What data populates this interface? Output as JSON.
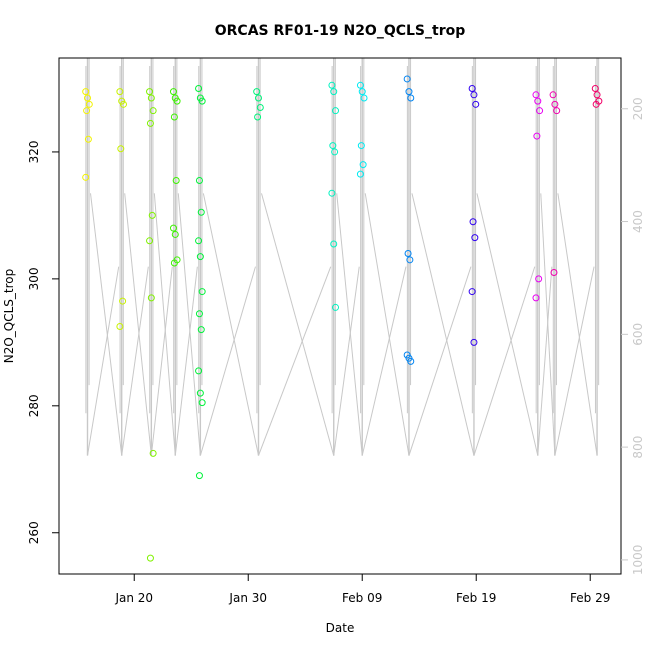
{
  "chart_data": {
    "type": "scatter",
    "title": "ORCAS RF01-19 N2O_QCLS_trop",
    "xlabel": "Date",
    "ylabel": "N2O_QCLS_trop",
    "x_ticks": [
      "Jan 20",
      "Jan 30",
      "Feb 09",
      "Feb 19",
      "Feb 29"
    ],
    "x_tick_days": [
      20,
      30,
      40,
      50,
      60
    ],
    "xlim_days": [
      13.4,
      62.7
    ],
    "y_ticks": [
      260,
      280,
      300,
      320
    ],
    "ylim": [
      253.5,
      334.8
    ],
    "y2_ticks": [
      200,
      400,
      600,
      800,
      1000
    ],
    "y2lim": [
      1025,
      110
    ],
    "marker": "open-circle",
    "altitude_line_color": "#c8c8c8",
    "flights": [
      {
        "day": 15.9,
        "color": "#f2f200",
        "values": [
          329.5,
          328.5,
          327.5,
          326.5,
          322,
          316
        ]
      },
      {
        "day": 18.9,
        "color": "#c8f200",
        "values": [
          329.5,
          328,
          327.5,
          320.5,
          296.5,
          292.5
        ]
      },
      {
        "day": 21.5,
        "color": "#80f200",
        "values": [
          329.5,
          328.5,
          326.5,
          324.5,
          310,
          306,
          297,
          272.5,
          256
        ]
      },
      {
        "day": 23.6,
        "color": "#3cf200",
        "values": [
          329.5,
          328.5,
          328,
          325.5,
          315.5,
          308,
          307,
          303,
          302.5
        ]
      },
      {
        "day": 25.8,
        "color": "#00f23a",
        "values": [
          330,
          328.5,
          328,
          315.5,
          310.5,
          306,
          303.5,
          298,
          294.5,
          292,
          285.5,
          282,
          280.5,
          269
        ]
      },
      {
        "day": 30.9,
        "color": "#00f27a",
        "values": [
          329.5,
          328.5,
          327,
          325.5
        ]
      },
      {
        "day": 37.5,
        "color": "#00f2c0",
        "values": [
          330.5,
          329.5,
          326.5,
          321,
          320,
          313.5,
          305.5,
          295.5
        ]
      },
      {
        "day": 40.0,
        "color": "#00eaf2",
        "values": [
          330.5,
          329.5,
          328.5,
          321,
          318,
          316.5
        ]
      },
      {
        "day": 44.1,
        "color": "#0084f2",
        "values": [
          331.5,
          329.5,
          328.5,
          304,
          303,
          288,
          287.5,
          287
        ]
      },
      {
        "day": 49.8,
        "color": "#3000f2",
        "values": [
          330,
          329,
          327.5,
          309,
          306.5,
          298,
          290
        ]
      },
      {
        "day": 55.4,
        "color": "#e800f2",
        "values": [
          329,
          328,
          326.5,
          322.5,
          300,
          297
        ]
      },
      {
        "day": 56.9,
        "color": "#f200b0",
        "values": [
          329,
          327.5,
          326.5,
          301
        ]
      },
      {
        "day": 60.6,
        "color": "#f20068",
        "values": [
          330,
          329,
          328,
          327.5
        ]
      }
    ]
  }
}
